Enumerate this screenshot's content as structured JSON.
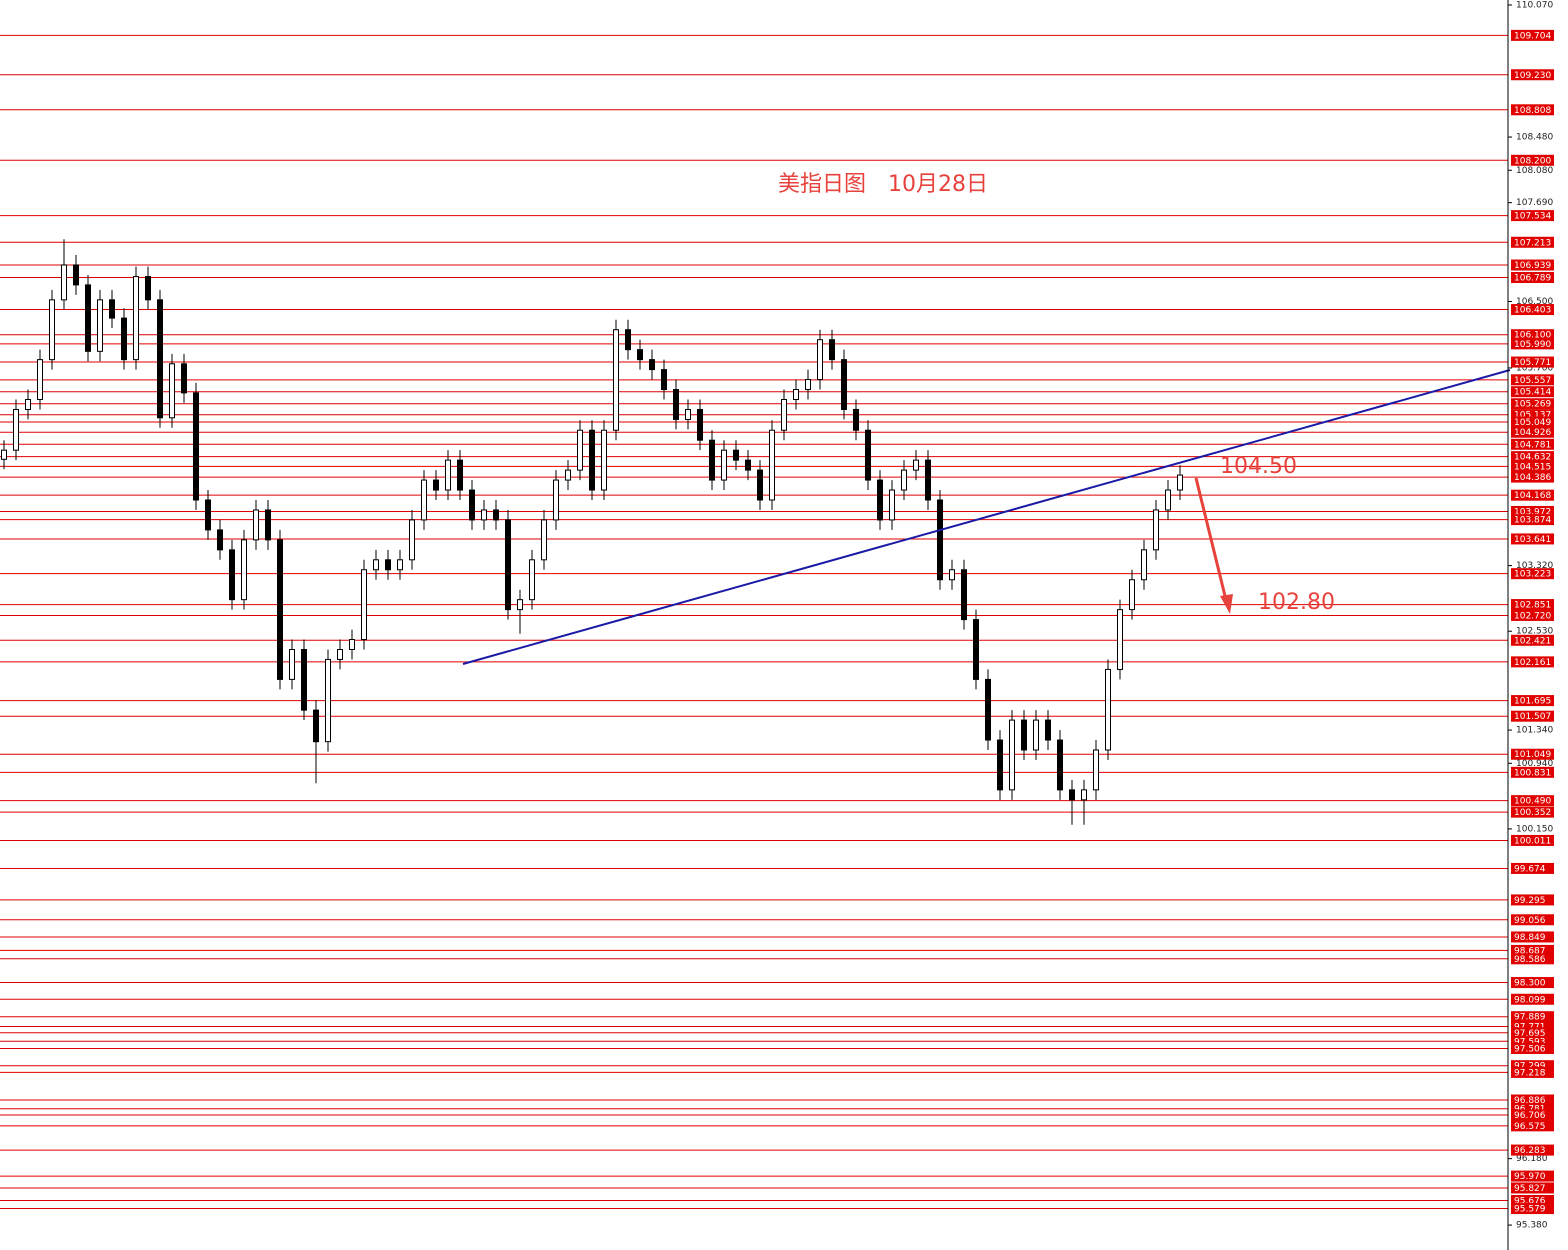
{
  "chart_data": {
    "type": "candlestick",
    "title": "美指日图　10月28日",
    "annotations": [
      "104.50",
      "102.80"
    ],
    "color": "#000000",
    "level_color": "#e00000",
    "ylim": [
      95.08,
      110.13
    ],
    "yticks": [
      {
        "value": 110.07,
        "label": "110.070"
      },
      {
        "value": 108.48,
        "label": "108.480"
      },
      {
        "value": 108.08,
        "label": "108.080"
      },
      {
        "value": 107.69,
        "label": "107.690"
      },
      {
        "value": 106.5,
        "label": "106.500"
      },
      {
        "value": 105.7,
        "label": "105.700"
      },
      {
        "value": 103.32,
        "label": "103.320"
      },
      {
        "value": 102.53,
        "label": "102.530"
      },
      {
        "value": 101.34,
        "label": "101.340"
      },
      {
        "value": 100.94,
        "label": "100.940"
      },
      {
        "value": 100.15,
        "label": "100.150"
      },
      {
        "value": 96.18,
        "label": "96.180"
      },
      {
        "value": 95.38,
        "label": "95.380"
      }
    ],
    "levels": [
      109.704,
      {
        "value": 109.23,
        "label": "109.230"
      },
      108.808,
      {
        "value": 108.2,
        "label": "108.200"
      },
      107.534,
      107.213,
      106.939,
      106.789,
      106.403,
      {
        "value": 106.1,
        "label": "106.100"
      },
      {
        "value": 105.99,
        "label": "105.990"
      },
      105.771,
      105.557,
      105.414,
      105.269,
      105.137,
      105.049,
      104.926,
      104.781,
      104.632,
      104.515,
      104.386,
      104.168,
      103.972,
      103.874,
      103.641,
      103.223,
      102.851,
      {
        "value": 102.72,
        "label": "102.720"
      },
      102.421,
      102.161,
      101.695,
      101.507,
      101.049,
      100.831,
      {
        "value": 100.49,
        "label": "100.490"
      },
      100.352,
      100.011,
      99.674,
      99.295,
      99.056,
      98.849,
      98.687,
      98.586,
      {
        "value": 98.3,
        "label": "98.300"
      },
      98.099,
      97.889,
      97.771,
      97.695,
      97.593,
      97.506,
      97.299,
      97.218,
      96.886,
      96.781,
      96.706,
      96.575,
      96.283,
      {
        "value": 95.97,
        "label": "95.970"
      },
      95.827,
      95.676,
      95.579
    ],
    "open": [
      104.6,
      104.71,
      105.2,
      105.32,
      105.8,
      106.52,
      106.94,
      106.7,
      105.9,
      106.52,
      106.3,
      105.8,
      106.8,
      106.52,
      105.1,
      105.75,
      105.4,
      104.11,
      103.75,
      103.51,
      102.91,
      103.63,
      103.99,
      103.63,
      101.95,
      102.31,
      101.58,
      101.2,
      102.19,
      102.31,
      102.43,
      103.27,
      103.39,
      103.27,
      103.39,
      103.87,
      104.35,
      104.23,
      104.59,
      104.23,
      103.87,
      103.99,
      103.87,
      102.79,
      102.91,
      103.39,
      103.87,
      104.35,
      104.47,
      104.95,
      104.23,
      104.95,
      106.16,
      105.92,
      105.8,
      105.68,
      105.44,
      105.08,
      105.2,
      104.83,
      104.35,
      104.71,
      104.59,
      104.47,
      104.11,
      104.95,
      105.32,
      105.44,
      105.56,
      106.04,
      105.8,
      105.2,
      104.95,
      104.35,
      103.87,
      104.23,
      104.47,
      104.59,
      104.11,
      103.15,
      103.27,
      102.67,
      101.95,
      101.22,
      100.62,
      101.46,
      101.1,
      101.46,
      101.22,
      100.62,
      100.5,
      100.62,
      101.1,
      102.07,
      102.79,
      103.15,
      103.51,
      103.99,
      104.23
    ],
    "high": [
      104.83,
      105.32,
      105.44,
      105.92,
      106.64,
      107.25,
      107.06,
      106.82,
      106.64,
      106.64,
      106.42,
      106.92,
      106.92,
      106.64,
      105.87,
      105.87,
      105.52,
      104.23,
      103.87,
      103.63,
      103.75,
      104.11,
      104.11,
      103.75,
      102.43,
      102.43,
      101.7,
      102.31,
      102.43,
      102.55,
      103.39,
      103.51,
      103.51,
      103.51,
      103.99,
      104.47,
      104.47,
      104.71,
      104.71,
      104.35,
      104.11,
      104.11,
      103.99,
      103.03,
      103.51,
      103.99,
      104.47,
      104.59,
      105.07,
      105.07,
      105.07,
      106.28,
      106.28,
      106.04,
      105.92,
      105.8,
      105.56,
      105.32,
      105.32,
      104.95,
      104.83,
      104.83,
      104.71,
      104.59,
      105.07,
      105.44,
      105.56,
      105.68,
      106.16,
      106.16,
      105.92,
      105.32,
      105.07,
      104.47,
      104.35,
      104.59,
      104.71,
      104.71,
      104.23,
      103.39,
      103.39,
      102.79,
      102.07,
      101.34,
      101.58,
      101.58,
      101.58,
      101.58,
      101.34,
      100.74,
      100.74,
      101.22,
      102.19,
      102.91,
      103.27,
      103.63,
      104.11,
      104.35,
      104.53
    ],
    "low": [
      104.48,
      104.59,
      105.08,
      105.2,
      105.68,
      106.4,
      106.58,
      105.78,
      105.78,
      106.18,
      105.68,
      105.68,
      106.4,
      104.98,
      104.98,
      105.28,
      103.99,
      103.63,
      103.39,
      102.79,
      102.79,
      103.51,
      103.51,
      101.83,
      101.83,
      101.46,
      100.7,
      101.08,
      102.07,
      102.19,
      102.31,
      103.15,
      103.15,
      103.15,
      103.27,
      103.75,
      104.11,
      104.11,
      104.11,
      103.75,
      103.75,
      103.75,
      102.67,
      102.5,
      102.79,
      103.27,
      103.75,
      104.23,
      104.35,
      104.11,
      104.11,
      104.83,
      105.8,
      105.68,
      105.56,
      105.32,
      104.96,
      104.96,
      104.71,
      104.23,
      104.23,
      104.47,
      104.35,
      103.99,
      103.99,
      104.83,
      105.2,
      105.32,
      105.44,
      105.68,
      105.08,
      104.83,
      104.23,
      103.75,
      103.75,
      104.11,
      104.35,
      103.99,
      103.03,
      103.03,
      102.55,
      101.83,
      101.1,
      100.5,
      100.5,
      100.98,
      100.98,
      101.1,
      100.5,
      100.2,
      100.2,
      100.5,
      100.98,
      101.95,
      102.67,
      103.03,
      103.39,
      103.87,
      104.11
    ],
    "close": [
      104.71,
      105.2,
      105.32,
      105.8,
      106.52,
      106.94,
      106.7,
      105.9,
      106.52,
      106.3,
      105.8,
      106.8,
      106.52,
      105.1,
      105.75,
      105.4,
      104.11,
      103.75,
      103.51,
      102.91,
      103.63,
      103.99,
      103.63,
      101.95,
      102.31,
      101.58,
      101.2,
      102.19,
      102.31,
      102.43,
      103.27,
      103.39,
      103.27,
      103.39,
      103.87,
      104.35,
      104.23,
      104.59,
      104.23,
      103.87,
      103.99,
      103.87,
      102.79,
      102.91,
      103.39,
      103.87,
      104.35,
      104.47,
      104.95,
      104.23,
      104.95,
      106.16,
      105.92,
      105.8,
      105.68,
      105.44,
      105.08,
      105.2,
      104.83,
      104.35,
      104.71,
      104.59,
      104.47,
      104.11,
      104.95,
      105.32,
      105.44,
      105.56,
      106.04,
      105.8,
      105.2,
      104.95,
      104.35,
      103.87,
      104.23,
      104.47,
      104.59,
      104.11,
      103.15,
      103.27,
      102.67,
      101.95,
      101.22,
      100.62,
      101.46,
      101.1,
      101.46,
      101.22,
      100.62,
      100.5,
      100.62,
      101.1,
      102.07,
      102.79,
      103.15,
      103.51,
      103.99,
      104.23,
      104.41
    ]
  }
}
